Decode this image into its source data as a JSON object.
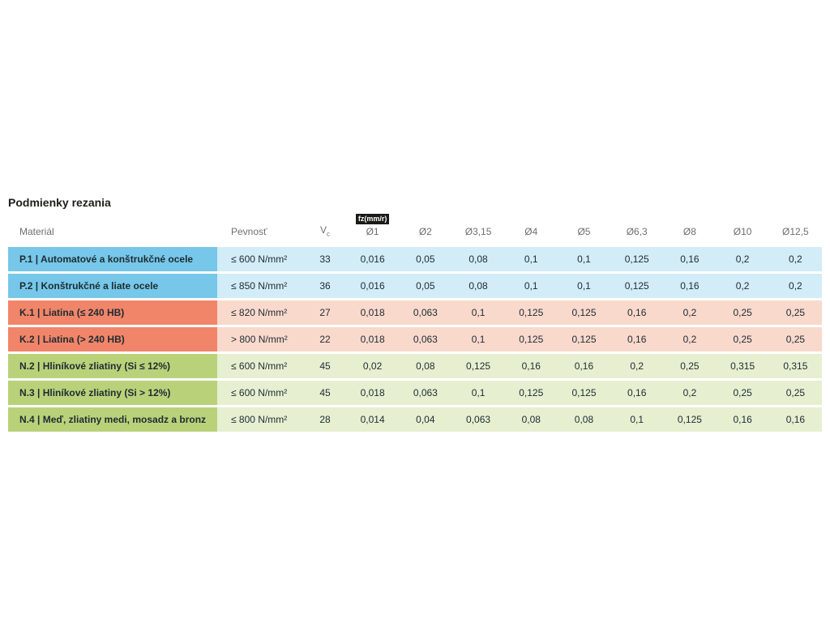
{
  "title": "Podmienky rezania",
  "colors": {
    "blue": "#76c7e9",
    "blue_light": "#d2ecf8",
    "orange": "#f18569",
    "orange_light": "#f9d9cc",
    "green": "#b9d27a",
    "green_light": "#e6efd0",
    "text": "#1e2b32",
    "header_text": "#6c6f72",
    "badge_bg": "#1a1a18",
    "badge_text": "#ffffff"
  },
  "table": {
    "headers": {
      "material": "Materiál",
      "pevnost": "Pevnosť",
      "vc_base": "V",
      "vc_sub": "c",
      "fz_badge": "fz(mm/r)",
      "diameters": [
        "Ø1",
        "Ø2",
        "Ø3,15",
        "Ø4",
        "Ø5",
        "Ø6,3",
        "Ø8",
        "Ø10",
        "Ø12,5"
      ]
    },
    "rows": [
      {
        "color": "blue",
        "label": "P.1 | Automatové a konštrukčné ocele",
        "pevnost": "≤ 600 N/mm²",
        "vc": "33",
        "values": [
          "0,016",
          "0,05",
          "0,08",
          "0,1",
          "0,1",
          "0,125",
          "0,16",
          "0,2",
          "0,2"
        ]
      },
      {
        "color": "blue",
        "label": "P.2 | Konštrukčné a liate ocele",
        "pevnost": "≤ 850 N/mm²",
        "vc": "36",
        "values": [
          "0,016",
          "0,05",
          "0,08",
          "0,1",
          "0,1",
          "0,125",
          "0,16",
          "0,2",
          "0,2"
        ]
      },
      {
        "color": "orange",
        "label": "K.1 | Liatina (≤ 240 HB)",
        "pevnost": "≤ 820 N/mm²",
        "vc": "27",
        "values": [
          "0,018",
          "0,063",
          "0,1",
          "0,125",
          "0,125",
          "0,16",
          "0,2",
          "0,25",
          "0,25"
        ]
      },
      {
        "color": "orange",
        "label": "K.2 | Liatina (> 240 HB)",
        "pevnost": "> 800 N/mm²",
        "vc": "22",
        "values": [
          "0,018",
          "0,063",
          "0,1",
          "0,125",
          "0,125",
          "0,16",
          "0,2",
          "0,25",
          "0,25"
        ]
      },
      {
        "color": "green",
        "label": "N.2 | Hliníkové zliatiny (Si ≤ 12%)",
        "pevnost": "≤ 600 N/mm²",
        "vc": "45",
        "values": [
          "0,02",
          "0,08",
          "0,125",
          "0,16",
          "0,16",
          "0,2",
          "0,25",
          "0,315",
          "0,315"
        ]
      },
      {
        "color": "green",
        "label": "N.3 | Hliníkové zliatiny (Si > 12%)",
        "pevnost": "≤ 600 N/mm²",
        "vc": "45",
        "values": [
          "0,018",
          "0,063",
          "0,1",
          "0,125",
          "0,125",
          "0,16",
          "0,2",
          "0,25",
          "0,25"
        ]
      },
      {
        "color": "green",
        "label": "N.4 | Meď, zliatiny medi, mosadz a bronz",
        "pevnost": "≤ 800 N/mm²",
        "vc": "28",
        "values": [
          "0,014",
          "0,04",
          "0,063",
          "0,08",
          "0,08",
          "0,1",
          "0,125",
          "0,16",
          "0,16"
        ]
      }
    ]
  }
}
